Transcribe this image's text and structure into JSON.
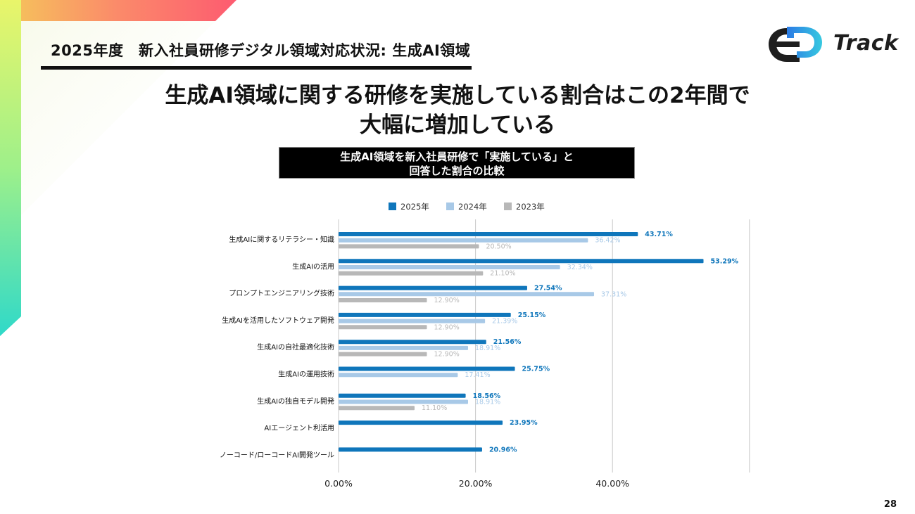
{
  "header": {
    "title": "2025年度　新入社員研修デジタル領域対応状況: 生成AI領域"
  },
  "logo": {
    "text": "Track"
  },
  "headline": {
    "line1": "生成AI領域に関する研修を実施している割合はこの2年間で",
    "line2": "大幅に増加している"
  },
  "chart_title": {
    "line1": "生成AI領域を新入社員研修で「実施している」と",
    "line2": "回答した割合の比較"
  },
  "page_number": "28",
  "colors": {
    "s2025": "#0f76bb",
    "s2024": "#a8c9e7",
    "s2023": "#b8b8b8"
  },
  "chart_data": {
    "type": "bar",
    "orientation": "horizontal",
    "title": "生成AI領域を新入社員研修で「実施している」と回答した割合の比較",
    "categories": [
      "生成AIに関するリテラシー・知識",
      "生成AIの活用",
      "プロンプトエンジニアリング技術",
      "生成AIを活用したソフトウェア開発",
      "生成AIの自社最適化技術",
      "生成AIの運用技術",
      "生成AIの独自モデル開発",
      "AIエージェント利活用",
      "ノーコード/ローコードAI開発ツール"
    ],
    "series": [
      {
        "name": "2025年",
        "values": [
          43.71,
          53.29,
          27.54,
          25.15,
          21.56,
          25.75,
          18.56,
          23.95,
          20.96
        ],
        "labels": [
          "43.71%",
          "53.29%",
          "27.54%",
          "25.15%",
          "21.56%",
          "25.75%",
          "18.56%",
          "23.95%",
          "20.96%"
        ]
      },
      {
        "name": "2024年",
        "values": [
          36.42,
          32.34,
          37.31,
          21.39,
          18.91,
          17.41,
          18.91,
          null,
          null
        ],
        "labels": [
          "36.42%",
          "32.34%",
          "37.31%",
          "21.39%",
          "18.91%",
          "17.41%",
          "18.91%",
          "",
          ""
        ]
      },
      {
        "name": "2023年",
        "values": [
          20.5,
          21.1,
          12.9,
          12.9,
          12.9,
          null,
          11.1,
          null,
          null
        ],
        "labels": [
          "20.50%",
          "21.10%",
          "12.90%",
          "12.90%",
          "12.90%",
          "",
          "11.10%",
          "",
          ""
        ]
      }
    ],
    "xlim": [
      0,
      60
    ],
    "xticks": [
      "0.00%",
      "20.00%",
      "40.00%"
    ],
    "xtick_values": [
      0,
      20,
      40
    ],
    "grid": true,
    "legend_position": "top"
  }
}
